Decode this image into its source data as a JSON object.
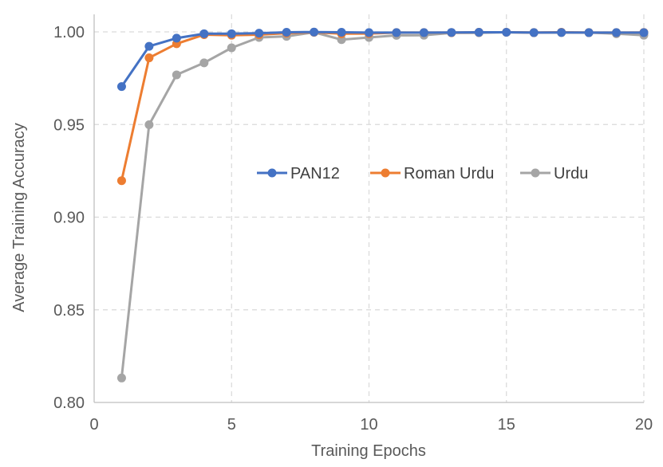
{
  "chart_data": {
    "type": "line",
    "xlabel": "Training Epochs",
    "ylabel": "Average Training Accuracy",
    "xlim": [
      0,
      20
    ],
    "ylim": [
      0.8,
      1.0
    ],
    "xticks": [
      0,
      5,
      10,
      15,
      20
    ],
    "yticks": [
      0.8,
      0.85,
      0.9,
      0.95,
      1.0
    ],
    "xtick_labels": [
      "0",
      "5",
      "10",
      "15",
      "20"
    ],
    "ytick_labels": [
      "0.80",
      "0.85",
      "0.90",
      "0.95",
      "1.00"
    ],
    "grid": true,
    "legend_position": "center",
    "x": [
      1,
      2,
      3,
      4,
      5,
      6,
      7,
      8,
      9,
      10,
      11,
      12,
      13,
      14,
      15,
      16,
      17,
      18,
      19,
      20
    ],
    "series": [
      {
        "name": "PAN12",
        "color": "#4472C4",
        "values": [
          0.9705,
          0.9922,
          0.9966,
          0.999,
          0.999,
          0.9993,
          0.9998,
          0.9999,
          0.9998,
          0.9996,
          0.9996,
          0.9996,
          0.9997,
          0.9998,
          0.9998,
          0.9996,
          0.9997,
          0.9996,
          0.9996,
          0.9996
        ]
      },
      {
        "name": "Roman Urdu",
        "color": "#ED7D31",
        "values": [
          0.9197,
          0.986,
          0.9936,
          0.9985,
          0.9982,
          0.9985,
          0.9993,
          0.9998,
          0.999,
          0.9991,
          0.9996,
          0.9996,
          0.9996,
          0.9998,
          0.9998,
          0.9996,
          0.9998,
          0.9996,
          0.9996,
          0.9997
        ]
      },
      {
        "name": "Urdu",
        "color": "#A5A5A5",
        "values": [
          0.8132,
          0.9499,
          0.9768,
          0.9833,
          0.9914,
          0.997,
          0.9976,
          0.9998,
          0.9958,
          0.997,
          0.9981,
          0.9982,
          0.9995,
          0.9995,
          0.9998,
          0.9996,
          0.9996,
          0.9996,
          0.999,
          0.9982
        ]
      }
    ]
  }
}
